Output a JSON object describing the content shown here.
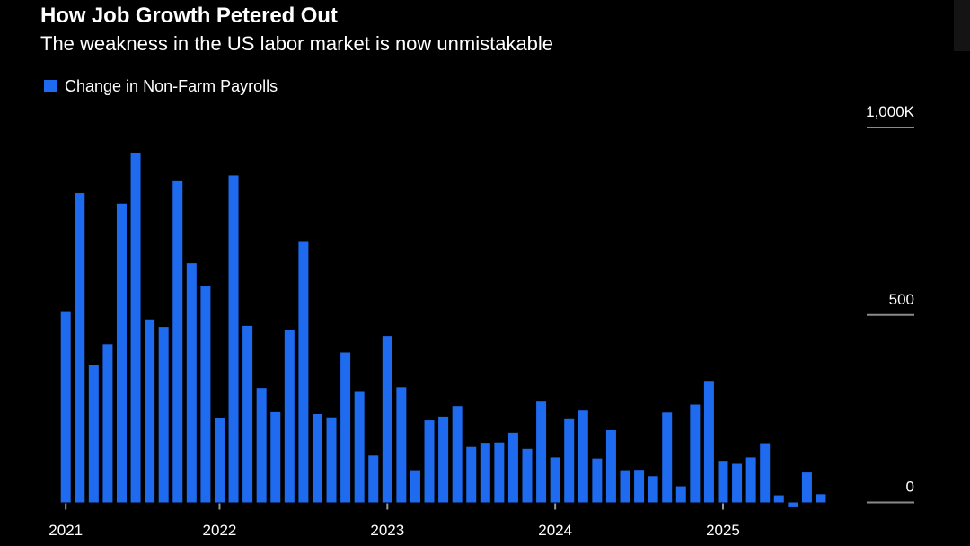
{
  "header": {
    "title": "How Job Growth Petered Out",
    "subtitle": "The weakness in the US labor market is now unmistakable"
  },
  "legend": {
    "label": "Change in Non-Farm Payrolls",
    "color": "#1F6BEF"
  },
  "chart_data": {
    "type": "bar",
    "title": "How Job Growth Petered Out",
    "subtitle": "The weakness in the US labor market is now unmistakable",
    "xlabel": "",
    "ylabel": "",
    "ylim": [
      0,
      1000
    ],
    "y_unit": "K",
    "y_ticks": [
      {
        "value": 1000,
        "label": "1,000K"
      },
      {
        "value": 500,
        "label": "500"
      },
      {
        "value": 0,
        "label": "0"
      }
    ],
    "x_ticks": [
      {
        "index": 0,
        "label": "2021"
      },
      {
        "index": 11,
        "label": "2022"
      },
      {
        "index": 23,
        "label": "2023"
      },
      {
        "index": 35,
        "label": "2024"
      },
      {
        "index": 47,
        "label": "2025"
      }
    ],
    "grid": true,
    "legend_position": "top-left",
    "series": [
      {
        "name": "Change in Non-Farm Payrolls",
        "color": "#1F6BEF",
        "values": [
          510,
          825,
          366,
          422,
          797,
          933,
          488,
          468,
          859,
          638,
          576,
          225,
          872,
          471,
          305,
          241,
          461,
          697,
          236,
          227,
          400,
          297,
          125,
          444,
          307,
          86,
          219,
          229,
          257,
          148,
          159,
          160,
          186,
          143,
          269,
          120,
          222,
          245,
          117,
          193,
          86,
          87,
          70,
          240,
          43,
          261,
          324,
          111,
          103,
          120,
          158,
          19,
          -13,
          80,
          22
        ]
      }
    ]
  }
}
